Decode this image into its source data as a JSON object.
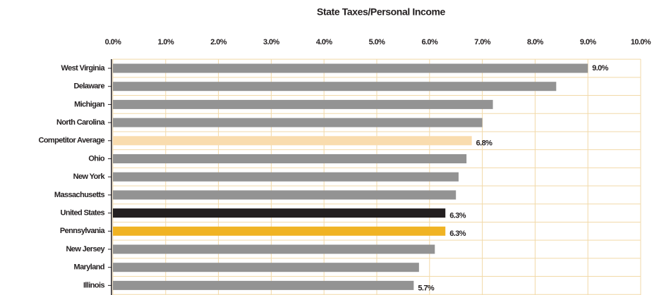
{
  "chart_data": {
    "type": "hbar",
    "title": "State Taxes/Personal Income",
    "categories": [
      "West Virginia",
      "Delaware",
      "Michigan",
      "North Carolina",
      "Competitor Average",
      "Ohio",
      "New York",
      "Massachusetts",
      "United States",
      "Pennsylvania",
      "New Jersey",
      "Maryland",
      "Illinois"
    ],
    "values": [
      9.0,
      8.4,
      7.2,
      7.0,
      6.8,
      6.7,
      6.55,
      6.5,
      6.3,
      6.3,
      6.1,
      5.8,
      5.7
    ],
    "value_labels": [
      "9.0%",
      null,
      null,
      null,
      "6.8%",
      null,
      null,
      null,
      "6.3%",
      "6.3%",
      null,
      null,
      "5.7%"
    ],
    "colors": [
      "#939393",
      "#939393",
      "#939393",
      "#939393",
      "#f9dcae",
      "#939393",
      "#939393",
      "#939393",
      "#231f20",
      "#f0b323",
      "#939393",
      "#939393",
      "#939393"
    ],
    "xlim": [
      0,
      10
    ],
    "xticks": [
      {
        "value": 0,
        "label": "0.0%"
      },
      {
        "value": 1,
        "label": "1.0%"
      },
      {
        "value": 2,
        "label": "2.0%"
      },
      {
        "value": 3,
        "label": "3.0%"
      },
      {
        "value": 4,
        "label": "4.0%"
      },
      {
        "value": 5,
        "label": "5.0%"
      },
      {
        "value": 6,
        "label": "6.0%"
      },
      {
        "value": 7,
        "label": "7.0%"
      },
      {
        "value": 8,
        "label": "8.0%"
      },
      {
        "value": 9,
        "label": "9.0%"
      },
      {
        "value": 10,
        "label": "10.0%"
      }
    ],
    "grid": true,
    "grid_color": "#f2d9a8"
  }
}
